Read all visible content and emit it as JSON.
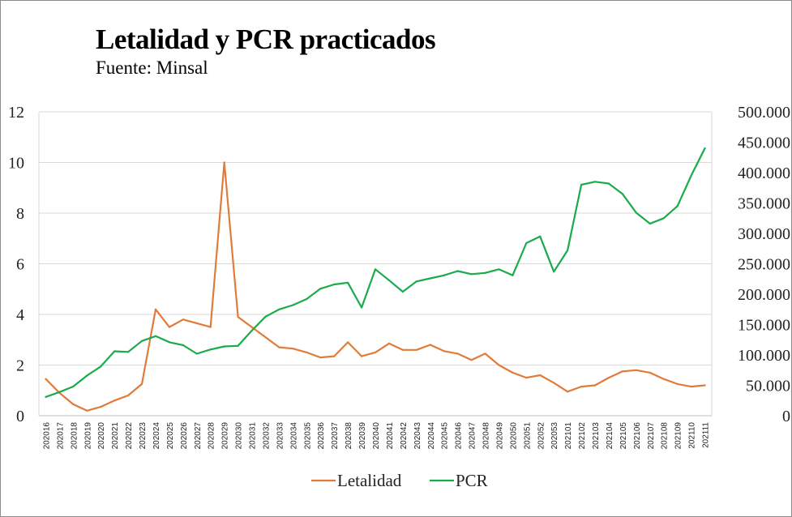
{
  "chart_data": {
    "type": "line",
    "title": "Letalidad y PCR practicados",
    "subtitle": "Fuente: Minsal",
    "categories": [
      "202016",
      "202017",
      "202018",
      "202019",
      "202020",
      "202021",
      "202022",
      "202023",
      "202024",
      "202025",
      "202026",
      "202027",
      "202028",
      "202029",
      "202030",
      "202031",
      "202032",
      "202033",
      "202034",
      "202035",
      "202036",
      "202037",
      "202038",
      "202039",
      "202040",
      "202041",
      "202042",
      "202043",
      "202044",
      "202045",
      "202046",
      "202047",
      "202048",
      "202049",
      "202050",
      "202051",
      "202052",
      "202053",
      "202101",
      "202102",
      "202103",
      "202104",
      "202105",
      "202106",
      "202107",
      "202108",
      "202109",
      "202110",
      "202111"
    ],
    "y_left": {
      "ylim": [
        0,
        12
      ],
      "ticks": [
        "0",
        "2",
        "4",
        "6",
        "8",
        "10",
        "12"
      ],
      "tick_values": [
        0,
        2,
        4,
        6,
        8,
        10,
        12
      ]
    },
    "y_right": {
      "ylim": [
        0,
        500000
      ],
      "ticks": [
        "0",
        "50.000",
        "100.000",
        "150.000",
        "200.000",
        "250.000",
        "300.000",
        "350.000",
        "400.000",
        "450.000",
        "500.000"
      ],
      "tick_values": [
        0,
        50000,
        100000,
        150000,
        200000,
        250000,
        300000,
        350000,
        400000,
        450000,
        500000
      ]
    },
    "grid": true,
    "legend_position": "bottom",
    "series": [
      {
        "name": "Letalidad",
        "axis": "left",
        "color": "#e07b39",
        "values": [
          1.45,
          0.9,
          0.45,
          0.2,
          0.35,
          0.6,
          0.8,
          1.25,
          4.2,
          3.5,
          3.8,
          3.65,
          3.5,
          10.0,
          3.9,
          3.5,
          3.1,
          2.7,
          2.65,
          2.5,
          2.3,
          2.35,
          2.9,
          2.35,
          2.5,
          2.85,
          2.6,
          2.6,
          2.8,
          2.55,
          2.45,
          2.2,
          2.45,
          2.0,
          1.7,
          1.5,
          1.6,
          1.3,
          0.95,
          1.15,
          1.2,
          1.5,
          1.75,
          1.8,
          1.7,
          1.45,
          1.25,
          1.15,
          1.2
        ]
      },
      {
        "name": "PCR",
        "axis": "right",
        "color": "#1aab4b",
        "values": [
          31000,
          39000,
          48000,
          66000,
          81000,
          106000,
          105000,
          123000,
          131000,
          121000,
          116000,
          102000,
          109000,
          114000,
          115000,
          140000,
          163000,
          175000,
          182000,
          192000,
          209000,
          216000,
          219000,
          178000,
          241000,
          223000,
          204000,
          221000,
          226000,
          231000,
          238000,
          233000,
          235000,
          241000,
          231000,
          284000,
          295000,
          237000,
          272000,
          380000,
          385000,
          382000,
          365000,
          334000,
          316000,
          325000,
          345000,
          395000,
          440000
        ]
      }
    ]
  }
}
